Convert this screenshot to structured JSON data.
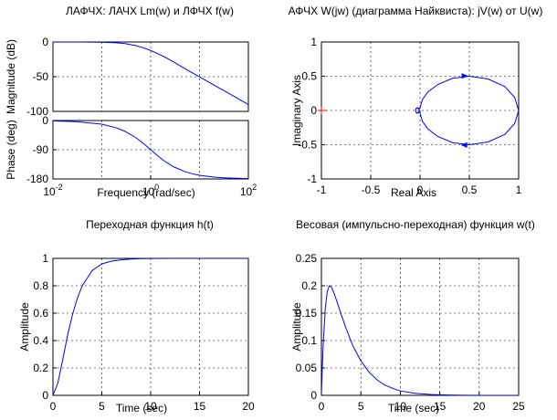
{
  "chart_data": [
    {
      "type": "line",
      "title": "ЛАФЧХ: ЛАЧХ Lm(w) и ЛФЧХ f(w)",
      "ylabel": "Magnitude (dB)",
      "xscale": "log",
      "xlim": [
        0.01,
        100
      ],
      "ylim": [
        -100,
        0
      ],
      "yticks": [
        0,
        -50,
        -100
      ],
      "yticklabels": [
        "0",
        "-50",
        "-100"
      ],
      "grid": true,
      "series": [
        {
          "color": "#0000ff",
          "x": [
            0.01,
            0.03,
            0.1,
            0.2,
            0.3,
            0.5,
            0.7,
            1,
            1.5,
            2,
            3,
            5,
            7,
            10,
            20,
            30,
            50,
            70,
            100
          ],
          "y": [
            0,
            -0.03,
            -0.3,
            -1.1,
            -2.3,
            -5.3,
            -8.3,
            -12.2,
            -17.8,
            -22.2,
            -29.1,
            -38.3,
            -44.1,
            -50.3,
            -62.2,
            -69.2,
            -78.1,
            -83.9,
            -90.1
          ]
        }
      ]
    },
    {
      "type": "line",
      "xlabel": "Frequency (rad/sec)",
      "ylabel": "Phase (deg)",
      "xscale": "log",
      "xlim": [
        0.01,
        100
      ],
      "ylim": [
        -180,
        0
      ],
      "yticks": [
        0,
        -90,
        -180
      ],
      "yticklabels": [
        "0",
        "-90",
        "-180"
      ],
      "xticks": [
        0.01,
        1,
        100
      ],
      "xticklabels": [
        {
          "base": "10",
          "exp": "-2"
        },
        {
          "base": "10",
          "exp": "0"
        },
        {
          "base": "10",
          "exp": "2"
        }
      ],
      "grid": true,
      "series": [
        {
          "color": "#0000ff",
          "x": [
            0.01,
            0.03,
            0.1,
            0.2,
            0.3,
            0.5,
            0.7,
            1,
            1.5,
            2,
            3,
            5,
            7,
            10,
            20,
            30,
            50,
            70,
            100
          ],
          "y": [
            -1.1,
            -3.4,
            -11.4,
            -22.6,
            -33.4,
            -53.1,
            -69.7,
            -90,
            -112.6,
            -126.9,
            -143.1,
            -157.4,
            -163.7,
            -168.6,
            -174.3,
            -176.2,
            -177.7,
            -178.4,
            -178.9
          ]
        }
      ]
    },
    {
      "type": "line",
      "title": "АФЧХ W(jw) (диаграмма Найквиста): jV(w) от U(w)",
      "xlabel": "Real Axis",
      "ylabel": "Imaginary Axis",
      "xlim": [
        -1,
        1
      ],
      "ylim": [
        -1,
        1
      ],
      "xticks": [
        -1,
        -0.5,
        0,
        0.5,
        1
      ],
      "xticklabels": [
        "-1",
        "-0.5",
        "0",
        "0.5",
        "1"
      ],
      "yticks": [
        1,
        0.5,
        0,
        -0.5,
        -1
      ],
      "yticklabels": [
        "1",
        "0.5",
        "0",
        "-0.5",
        "-1"
      ],
      "grid": true,
      "critical_point": {
        "x": -1,
        "y": 0,
        "color": "#ff0000"
      },
      "series": [
        {
          "color": "#0000ff",
          "x": [
            0,
            0.004,
            0.025,
            0.08,
            0.18,
            0.33,
            0.5,
            0.69,
            0.86,
            0.96,
            1.0,
            0.96,
            0.86,
            0.69,
            0.5,
            0.33,
            0.18,
            0.08,
            0.025,
            0.004,
            0,
            -0.01,
            -0.02,
            -0.03,
            -0.04,
            -0.045,
            -0.04,
            -0.025,
            -0.008,
            -0.008,
            -0.025,
            -0.04,
            -0.045,
            -0.04,
            -0.03,
            -0.02,
            -0.01,
            0
          ],
          "y": [
            0.025,
            0.06,
            0.16,
            0.27,
            0.38,
            0.47,
            0.5,
            0.46,
            0.35,
            0.19,
            0,
            -0.19,
            -0.35,
            -0.46,
            -0.5,
            -0.47,
            -0.38,
            -0.27,
            -0.16,
            -0.06,
            -0.025,
            -0.03,
            -0.035,
            -0.04,
            -0.03,
            0,
            0.03,
            0.04,
            0.01,
            -0.01,
            -0.04,
            -0.03,
            0,
            0.03,
            0.04,
            0.035,
            0.03,
            0.025
          ]
        }
      ],
      "arrows": [
        {
          "x": 0.45,
          "y": 0.505,
          "dx": 1,
          "dy": 0
        },
        {
          "x": 0.45,
          "y": -0.505,
          "dx": -1,
          "dy": 0
        }
      ]
    },
    {
      "type": "line",
      "title": "Переходная функция h(t)",
      "xlabel": "Time (sec)",
      "ylabel": "Amplitude",
      "xlim": [
        0,
        20
      ],
      "ylim": [
        0,
        1
      ],
      "xticks": [
        0,
        5,
        10,
        15,
        20
      ],
      "xticklabels": [
        "0",
        "5",
        "10",
        "15",
        "20"
      ],
      "yticks": [
        0,
        0.2,
        0.4,
        0.6,
        0.8,
        1
      ],
      "yticklabels": [
        "0",
        "0.2",
        "0.4",
        "0.6",
        "0.8",
        "1"
      ],
      "grid": true,
      "series": [
        {
          "color": "#0000ff",
          "x": [
            0,
            0.5,
            1,
            1.5,
            2,
            2.5,
            3,
            4,
            5,
            6,
            7,
            8,
            9,
            10,
            12,
            14,
            16,
            18,
            20
          ],
          "y": [
            0,
            0.09,
            0.26,
            0.44,
            0.59,
            0.71,
            0.8,
            0.91,
            0.96,
            0.98,
            0.99,
            0.995,
            0.998,
            0.999,
            1,
            1,
            1,
            1,
            1
          ]
        }
      ]
    },
    {
      "type": "line",
      "title": "Весовая (импульсно-переходная) функция w(t)",
      "xlabel": "Time (sec)",
      "ylabel": "Amplitude",
      "xlim": [
        0,
        25
      ],
      "ylim": [
        0,
        0.25
      ],
      "xticks": [
        0,
        5,
        10,
        15,
        20,
        25
      ],
      "xticklabels": [
        "0",
        "5",
        "10",
        "15",
        "20",
        "25"
      ],
      "yticks": [
        0,
        0.05,
        0.1,
        0.15,
        0.2,
        0.25
      ],
      "yticklabels": [
        "0",
        "0.05",
        "0.1",
        "0.15",
        "0.2",
        "0.25"
      ],
      "grid": true,
      "series": [
        {
          "color": "#0000ff",
          "x": [
            0,
            0.1,
            0.25,
            0.5,
            0.75,
            1,
            1.25,
            1.5,
            2,
            2.5,
            3,
            4,
            5,
            6,
            7,
            8,
            9,
            10,
            12,
            14,
            16,
            18,
            20,
            25
          ],
          "y": [
            0,
            0.045,
            0.1,
            0.16,
            0.19,
            0.2,
            0.198,
            0.19,
            0.17,
            0.148,
            0.127,
            0.09,
            0.063,
            0.043,
            0.029,
            0.019,
            0.013,
            0.008,
            0.0035,
            0.0015,
            0.0006,
            0.0003,
            0.0001,
            0
          ]
        }
      ]
    }
  ]
}
